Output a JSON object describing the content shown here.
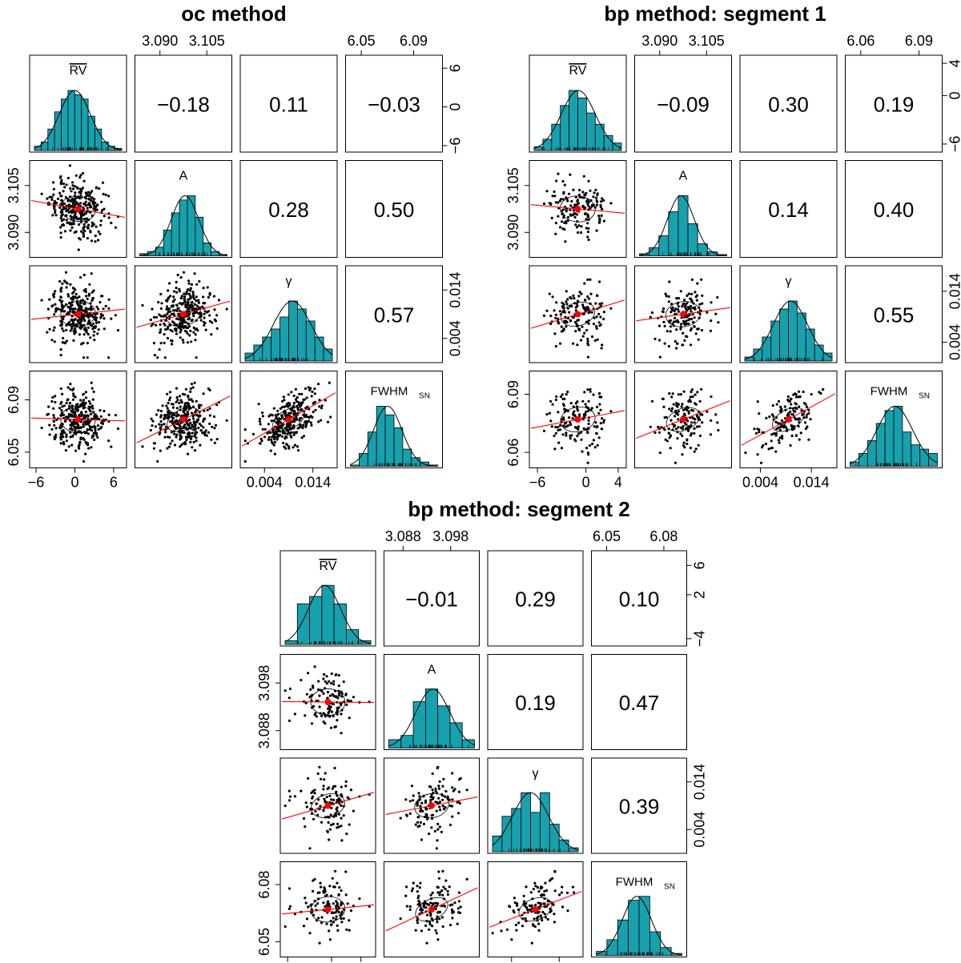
{
  "chart_data": [
    {
      "type": "pairs",
      "title": "oc method",
      "variables": [
        {
          "label": "RV",
          "overline": true,
          "ticks": [
            -6,
            0,
            6
          ],
          "range": [
            -7,
            8
          ]
        },
        {
          "label": "A",
          "ticks": [
            3.09,
            3.105
          ],
          "tick_labels": [
            "3.090",
            "3.105"
          ],
          "range": [
            3.082,
            3.113
          ]
        },
        {
          "label": "γ",
          "ticks": [
            0.004,
            0.014
          ],
          "tick_labels": [
            "0.004",
            "0.014"
          ],
          "range": [
            -0.001,
            0.019
          ]
        },
        {
          "label": "FWHM",
          "sub": "SN",
          "ticks": [
            6.05,
            6.09
          ],
          "tick_labels": [
            "6.05",
            "6.09"
          ],
          "range": [
            6.038,
            6.112
          ]
        }
      ],
      "correlations": {
        "0-1": "−0.18",
        "0-2": "0.11",
        "0-3": "−0.03",
        "1-2": "0.28",
        "1-3": "0.50",
        "2-3": "0.57"
      },
      "histograms": [
        [
          1,
          2,
          5,
          9,
          12,
          14,
          13,
          12,
          8,
          5,
          2,
          1,
          0.5
        ],
        [
          0.5,
          1,
          2,
          6,
          10,
          13,
          14,
          9,
          3,
          1,
          0.3
        ],
        [
          2,
          4,
          6,
          8,
          11,
          15,
          13,
          10,
          6,
          3
        ],
        [
          0.3,
          3,
          8,
          14,
          12,
          9,
          4,
          2,
          1,
          0.3
        ]
      ],
      "points": 300
    },
    {
      "type": "pairs",
      "title": "bp method: segment 1",
      "variables": [
        {
          "label": "RV",
          "overline": true,
          "ticks": [
            -6,
            0,
            4
          ],
          "range": [
            -7,
            5
          ]
        },
        {
          "label": "A",
          "ticks": [
            3.09,
            3.105
          ],
          "tick_labels": [
            "3.090",
            "3.105"
          ],
          "range": [
            3.082,
            3.113
          ]
        },
        {
          "label": "γ",
          "ticks": [
            0.004,
            0.014
          ],
          "tick_labels": [
            "0.004",
            "0.014"
          ],
          "range": [
            0.0,
            0.019
          ]
        },
        {
          "label": "FWHM",
          "sub": "SN",
          "ticks": [
            6.06,
            6.09
          ],
          "tick_labels": [
            "6.06",
            "6.09"
          ],
          "range": [
            6.052,
            6.102
          ]
        }
      ],
      "y_ticks_first": [
        -6,
        0,
        4
      ],
      "correlations": {
        "0-1": "−0.09",
        "0-2": "0.30",
        "0-3": "0.19",
        "1-2": "0.14",
        "1-3": "0.40",
        "2-3": "0.55"
      },
      "histograms": [
        [
          1,
          3,
          7,
          12,
          16,
          14,
          10,
          7,
          4,
          2
        ],
        [
          0.5,
          2,
          5,
          11,
          15,
          8,
          3,
          1,
          0.3
        ],
        [
          1,
          3,
          6,
          10,
          13,
          15,
          12,
          8,
          4,
          2
        ],
        [
          1,
          3,
          6,
          10,
          13,
          14,
          8,
          5,
          4,
          3
        ]
      ],
      "points": 150
    },
    {
      "type": "pairs",
      "title": "bp method: segment 2",
      "variables": [
        {
          "label": "RV",
          "overline": true,
          "ticks": [
            -4,
            2,
            6
          ],
          "range": [
            -5,
            8
          ]
        },
        {
          "label": "A",
          "ticks": [
            3.088,
            3.098
          ],
          "tick_labels": [
            "3.088",
            "3.098"
          ],
          "range": [
            3.084,
            3.104
          ]
        },
        {
          "label": "γ",
          "ticks": [
            0.004,
            0.014
          ],
          "tick_labels": [
            "0.004",
            "0.014"
          ],
          "range": [
            -0.001,
            0.019
          ]
        },
        {
          "label": "FWHM",
          "sub": "SN",
          "ticks": [
            6.05,
            6.08
          ],
          "tick_labels": [
            "6.05",
            "6.08"
          ],
          "range": [
            6.042,
            6.092
          ]
        }
      ],
      "y_ticks_first": [
        -4,
        2,
        6
      ],
      "correlations": {
        "0-1": "−0.01",
        "0-2": "0.29",
        "0-3": "0.10",
        "1-2": "0.19",
        "1-3": "0.47",
        "2-3": "0.39"
      },
      "histograms": [
        [
          1,
          11,
          13,
          16,
          11,
          4,
          1
        ],
        [
          2,
          3,
          11,
          14,
          10,
          6,
          2
        ],
        [
          4,
          9,
          11,
          15,
          10,
          15,
          7,
          3,
          1
        ],
        [
          1,
          4,
          9,
          14,
          15,
          6,
          2,
          0.5
        ]
      ],
      "points": 120
    }
  ],
  "colors": {
    "bar": "#17a0ad",
    "point": "#000000",
    "fit_line": "#ff0000",
    "center": "#ff0000"
  }
}
